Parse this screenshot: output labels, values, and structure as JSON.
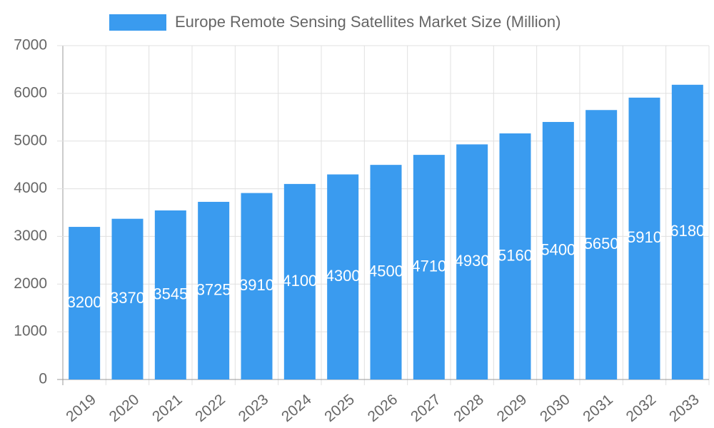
{
  "chart_data": {
    "type": "bar",
    "categories": [
      "2019",
      "2020",
      "2021",
      "2022",
      "2023",
      "2024",
      "2025",
      "2026",
      "2027",
      "2028",
      "2029",
      "2030",
      "2031",
      "2032",
      "2033"
    ],
    "series": [
      {
        "name": "Europe Remote Sensing Satellites Market Size (Million)",
        "color": "#3a9bef",
        "values": [
          3200,
          3370,
          3545,
          3725,
          3910,
          4100,
          4300,
          4500,
          4710,
          4930,
          5160,
          5400,
          5650,
          5910,
          6180
        ]
      }
    ],
    "ylim": [
      0,
      7000
    ],
    "yticks": [
      0,
      1000,
      2000,
      3000,
      4000,
      5000,
      6000,
      7000
    ],
    "grid": true,
    "legend": "top"
  }
}
